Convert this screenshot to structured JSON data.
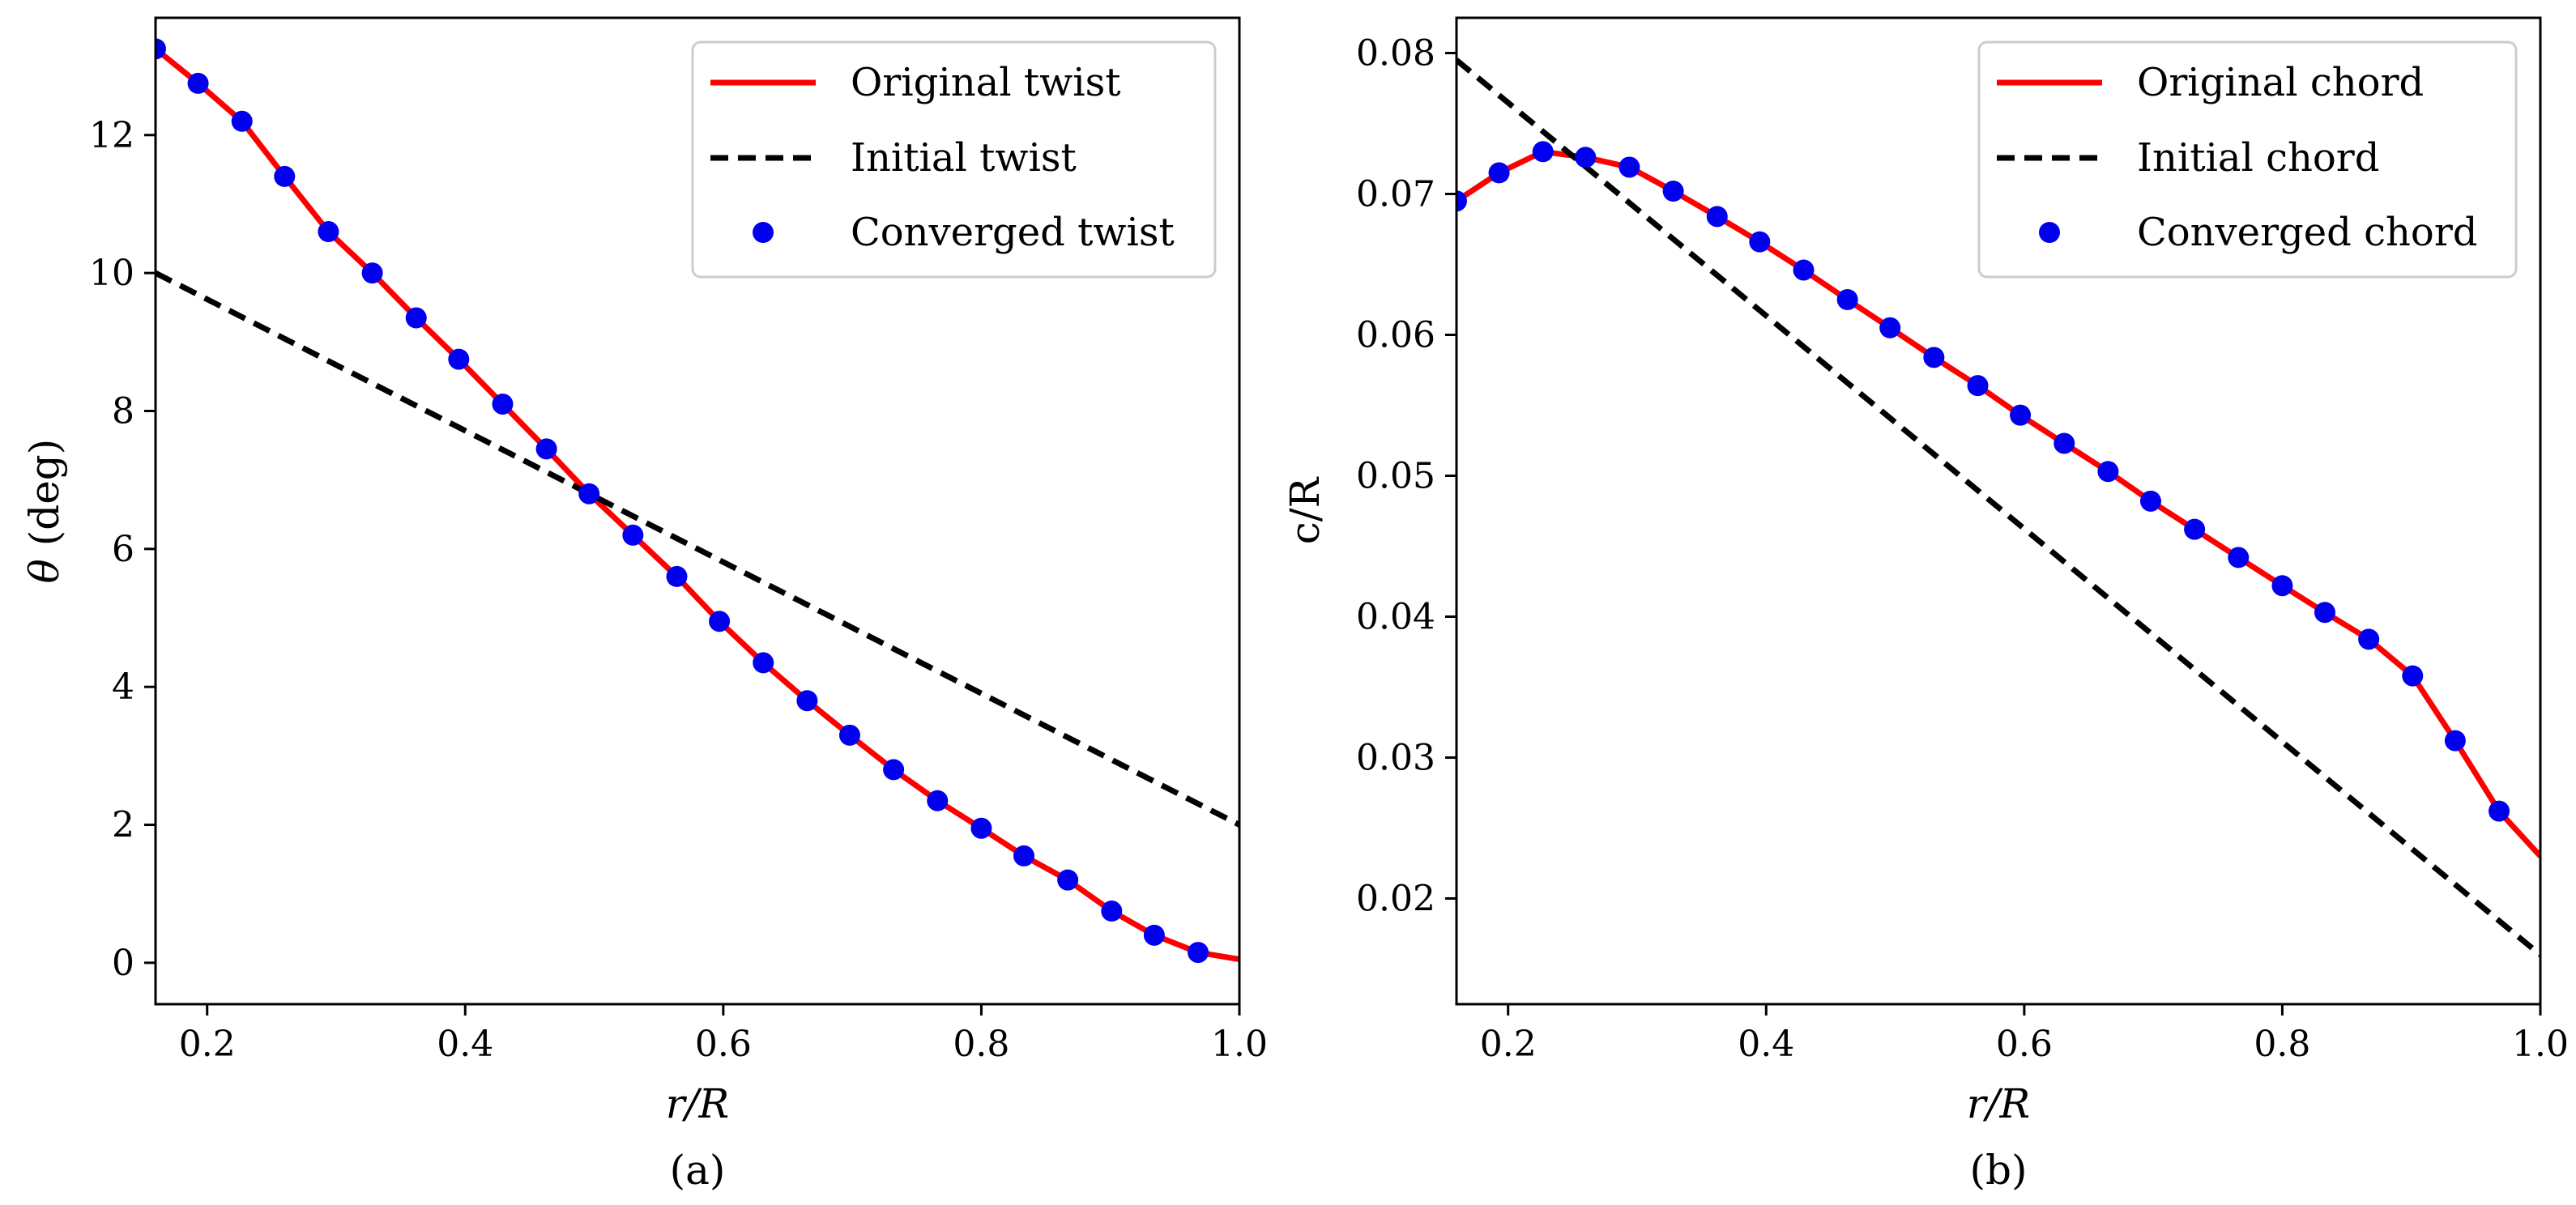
{
  "chart_data": [
    {
      "type": "line",
      "subcaption": "(a)",
      "xlabel": "r/R",
      "ylabel_symbol": "θ",
      "ylabel_unit": " (deg)",
      "xlim": [
        0.16,
        1.0
      ],
      "ylim": [
        -0.6,
        13.7
      ],
      "xticks": [
        0.2,
        0.4,
        0.6,
        0.8,
        1.0
      ],
      "xtick_labels": [
        "0.2",
        "0.4",
        "0.6",
        "0.8",
        "1.0"
      ],
      "yticks": [
        0,
        2,
        4,
        6,
        8,
        10,
        12
      ],
      "ytick_labels": [
        "0",
        "2",
        "4",
        "6",
        "8",
        "10",
        "12"
      ],
      "legend_position": "top-right",
      "series": [
        {
          "name": "Original twist",
          "style": "solid",
          "color": "#ff0000",
          "x": [
            0.16,
            0.193,
            0.227,
            0.26,
            0.294,
            0.328,
            0.362,
            0.395,
            0.429,
            0.463,
            0.496,
            0.53,
            0.564,
            0.597,
            0.631,
            0.665,
            0.698,
            0.732,
            0.766,
            0.8,
            0.833,
            0.867,
            0.901,
            0.934,
            0.968,
            1.0
          ],
          "y": [
            13.25,
            12.75,
            12.2,
            11.4,
            10.6,
            10.0,
            9.35,
            8.75,
            8.1,
            7.45,
            6.8,
            6.2,
            5.6,
            4.95,
            4.35,
            3.8,
            3.3,
            2.8,
            2.35,
            1.95,
            1.55,
            1.2,
            0.75,
            0.4,
            0.15,
            0.05
          ]
        },
        {
          "name": "Initial twist",
          "style": "dashed",
          "color": "#000000",
          "x": [
            0.16,
            1.0
          ],
          "y": [
            10.0,
            2.0
          ]
        },
        {
          "name": "Converged twist",
          "style": "markers",
          "color": "#0000ee",
          "x": [
            0.16,
            0.193,
            0.227,
            0.26,
            0.294,
            0.328,
            0.362,
            0.395,
            0.429,
            0.463,
            0.496,
            0.53,
            0.564,
            0.597,
            0.631,
            0.665,
            0.698,
            0.732,
            0.766,
            0.8,
            0.833,
            0.867,
            0.901,
            0.934,
            0.968
          ],
          "y": [
            13.25,
            12.75,
            12.2,
            11.4,
            10.6,
            10.0,
            9.35,
            8.75,
            8.1,
            7.45,
            6.8,
            6.2,
            5.6,
            4.95,
            4.35,
            3.8,
            3.3,
            2.8,
            2.35,
            1.95,
            1.55,
            1.2,
            0.75,
            0.4,
            0.15
          ]
        }
      ]
    },
    {
      "type": "line",
      "subcaption": "(b)",
      "xlabel": "r/R",
      "ylabel": "c/R",
      "xlim": [
        0.16,
        1.0
      ],
      "ylim": [
        0.0125,
        0.0825
      ],
      "xticks": [
        0.2,
        0.4,
        0.6,
        0.8,
        1.0
      ],
      "xtick_labels": [
        "0.2",
        "0.4",
        "0.6",
        "0.8",
        "1.0"
      ],
      "yticks": [
        0.02,
        0.03,
        0.04,
        0.05,
        0.06,
        0.07,
        0.08
      ],
      "ytick_labels": [
        "0.02",
        "0.03",
        "0.04",
        "0.05",
        "0.06",
        "0.07",
        "0.08"
      ],
      "legend_position": "top-right",
      "series": [
        {
          "name": "Original chord",
          "style": "solid",
          "color": "#ff0000",
          "x": [
            0.16,
            0.193,
            0.227,
            0.26,
            0.294,
            0.328,
            0.362,
            0.395,
            0.429,
            0.463,
            0.496,
            0.53,
            0.564,
            0.597,
            0.631,
            0.665,
            0.698,
            0.732,
            0.766,
            0.8,
            0.833,
            0.867,
            0.901,
            0.934,
            0.968,
            1.0
          ],
          "y": [
            0.0695,
            0.0715,
            0.073,
            0.0726,
            0.0719,
            0.0702,
            0.0684,
            0.0666,
            0.0646,
            0.0625,
            0.0605,
            0.0584,
            0.0564,
            0.0543,
            0.0523,
            0.0503,
            0.0482,
            0.0462,
            0.0442,
            0.0422,
            0.0403,
            0.0384,
            0.0358,
            0.0312,
            0.0262,
            0.023
          ]
        },
        {
          "name": "Initial chord",
          "style": "dashed",
          "color": "#000000",
          "x": [
            0.16,
            1.0
          ],
          "y": [
            0.0795,
            0.016
          ]
        },
        {
          "name": "Converged chord",
          "style": "markers",
          "color": "#0000ee",
          "x": [
            0.16,
            0.193,
            0.227,
            0.26,
            0.294,
            0.328,
            0.362,
            0.395,
            0.429,
            0.463,
            0.496,
            0.53,
            0.564,
            0.597,
            0.631,
            0.665,
            0.698,
            0.732,
            0.766,
            0.8,
            0.833,
            0.867,
            0.901,
            0.934,
            0.968
          ],
          "y": [
            0.0695,
            0.0715,
            0.073,
            0.0726,
            0.0719,
            0.0702,
            0.0684,
            0.0666,
            0.0646,
            0.0625,
            0.0605,
            0.0584,
            0.0564,
            0.0543,
            0.0523,
            0.0503,
            0.0482,
            0.0462,
            0.0442,
            0.0422,
            0.0403,
            0.0384,
            0.0358,
            0.0312,
            0.0262
          ]
        }
      ]
    }
  ]
}
